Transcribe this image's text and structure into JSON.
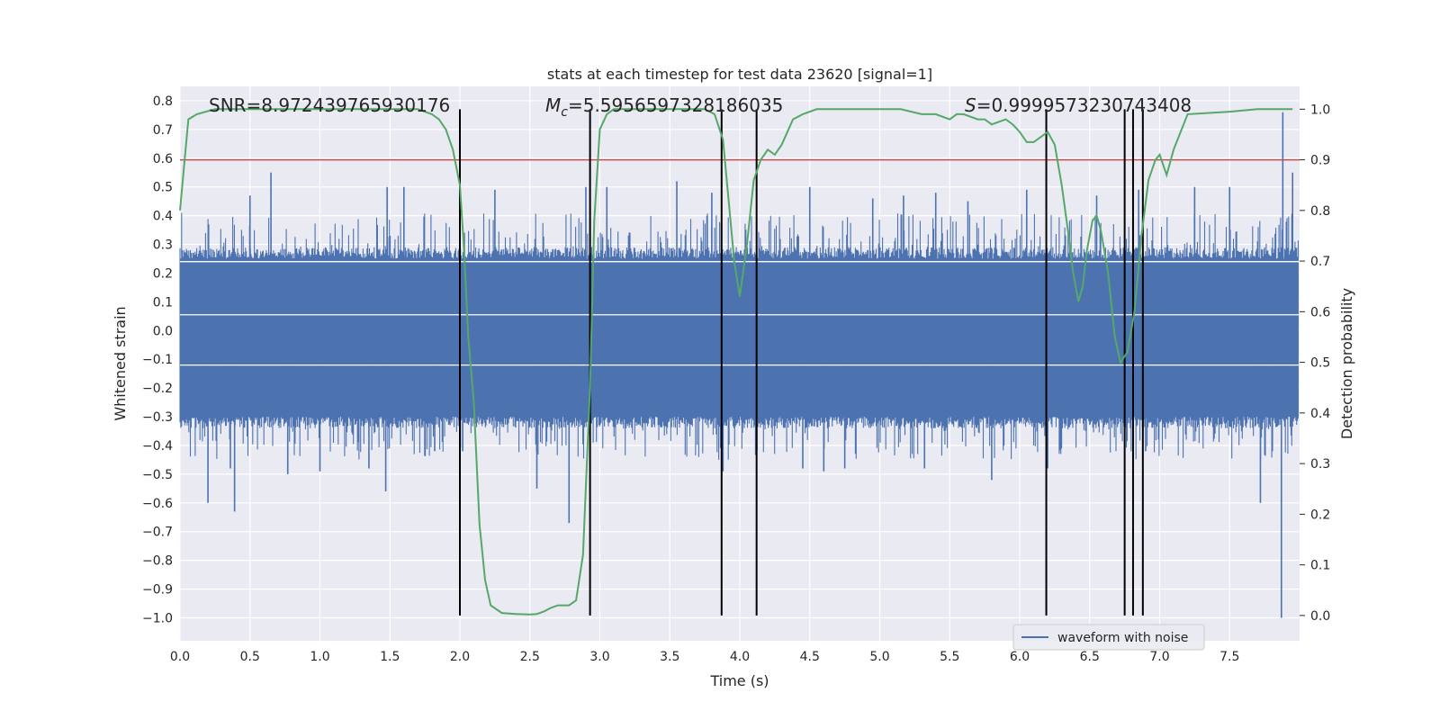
{
  "chart_data": {
    "type": "line",
    "title": "stats at each timestep for test data 23620 [signal=1]",
    "xlabel": "Time (s)",
    "ylabel_left": "Whitened strain",
    "ylabel_right": "Detection probability",
    "xlim": [
      0,
      8
    ],
    "ylim_left": [
      -1.08,
      0.85
    ],
    "ylim_right": [
      -0.05,
      1.045
    ],
    "x_ticks": [
      0.0,
      0.5,
      1.0,
      1.5,
      2.0,
      2.5,
      3.0,
      3.5,
      4.0,
      4.5,
      5.0,
      5.5,
      6.0,
      6.5,
      7.0,
      7.5
    ],
    "x_tick_labels": [
      "0.0",
      "0.5",
      "1.0",
      "1.5",
      "2.0",
      "2.5",
      "3.0",
      "3.5",
      "4.0",
      "4.5",
      "5.0",
      "5.5",
      "6.0",
      "6.5",
      "7.0",
      "7.5"
    ],
    "y_left_ticks": [
      0.8,
      0.7,
      0.6,
      0.5,
      0.4,
      0.3,
      0.2,
      0.1,
      0.0,
      -0.1,
      -0.2,
      -0.3,
      -0.4,
      -0.5,
      -0.6,
      -0.7,
      -0.8,
      -0.9,
      -1.0
    ],
    "y_left_tick_labels": [
      "0.8",
      "0.7",
      "0.6",
      "0.5",
      "0.4",
      "0.3",
      "0.2",
      "0.1",
      "0.0",
      "−0.1",
      "−0.2",
      "−0.3",
      "−0.4",
      "−0.5",
      "−0.6",
      "−0.7",
      "−0.8",
      "−0.9",
      "−1.0"
    ],
    "y_right_ticks": [
      1.0,
      0.9,
      0.8,
      0.7,
      0.6,
      0.5,
      0.4,
      0.3,
      0.2,
      0.1,
      0.0
    ],
    "y_right_tick_labels": [
      "1.0",
      "0.9",
      "0.8",
      "0.7",
      "0.6",
      "0.5",
      "0.4",
      "0.3",
      "0.2",
      "0.1",
      "0.0"
    ],
    "grid": true,
    "legend": {
      "placement": "lower-right",
      "entries": [
        "waveform with noise"
      ]
    },
    "annotations": {
      "snr": "SNR=8.972439765930176",
      "mc_symbol": "M",
      "mc_sub": "c",
      "mc_value": "=5.5956597328186035",
      "s_symbol": "S",
      "s_value": "=0.9999573230743408"
    },
    "waveform": {
      "name": "waveform with noise",
      "color": "#4c72b0",
      "t_start": 0.0,
      "t_end": 7.99,
      "envelope": [
        0.25,
        -0.3
      ],
      "spikes": [
        {
          "t": 0.2,
          "v": -0.6
        },
        {
          "t": 0.36,
          "v": -0.48
        },
        {
          "t": 0.39,
          "v": -0.63
        },
        {
          "t": 0.5,
          "v": 0.47
        },
        {
          "t": 0.65,
          "v": 0.55
        },
        {
          "t": 0.77,
          "v": -0.5
        },
        {
          "t": 1.0,
          "v": -0.49
        },
        {
          "t": 1.35,
          "v": -0.48
        },
        {
          "t": 1.47,
          "v": -0.56
        },
        {
          "t": 1.48,
          "v": 0.5
        },
        {
          "t": 1.6,
          "v": 0.5
        },
        {
          "t": 1.82,
          "v": -0.42
        },
        {
          "t": 2.02,
          "v": -0.42
        },
        {
          "t": 2.25,
          "v": 0.49
        },
        {
          "t": 2.55,
          "v": -0.55
        },
        {
          "t": 2.78,
          "v": -0.67
        },
        {
          "t": 2.9,
          "v": 0.5
        },
        {
          "t": 3.05,
          "v": 0.5
        },
        {
          "t": 3.55,
          "v": 0.52
        },
        {
          "t": 3.8,
          "v": 0.48
        },
        {
          "t": 3.88,
          "v": -0.49
        },
        {
          "t": 4.45,
          "v": -0.48
        },
        {
          "t": 4.5,
          "v": 0.5
        },
        {
          "t": 4.6,
          "v": -0.49
        },
        {
          "t": 4.75,
          "v": -0.48
        },
        {
          "t": 4.95,
          "v": 0.46
        },
        {
          "t": 5.17,
          "v": 0.47
        },
        {
          "t": 5.32,
          "v": -0.48
        },
        {
          "t": 5.4,
          "v": 0.48
        },
        {
          "t": 5.63,
          "v": 0.45
        },
        {
          "t": 5.8,
          "v": -0.52
        },
        {
          "t": 6.05,
          "v": 0.49
        },
        {
          "t": 6.2,
          "v": -0.48
        },
        {
          "t": 6.55,
          "v": 0.47
        },
        {
          "t": 6.85,
          "v": 0.49
        },
        {
          "t": 6.9,
          "v": -0.42
        },
        {
          "t": 7.25,
          "v": 0.5
        },
        {
          "t": 7.5,
          "v": 0.5
        },
        {
          "t": 7.72,
          "v": -0.6
        },
        {
          "t": 7.88,
          "v": 0.76
        },
        {
          "t": 7.87,
          "v": -1.0
        },
        {
          "t": 7.95,
          "v": 0.55
        }
      ]
    },
    "probability": {
      "color": "#55a868",
      "t": [
        0.0,
        0.06,
        0.12,
        0.25,
        0.5,
        1.0,
        1.5,
        1.7,
        1.8,
        1.85,
        1.9,
        1.95,
        2.0,
        2.03,
        2.06,
        2.1,
        2.14,
        2.18,
        2.22,
        2.3,
        2.4,
        2.5,
        2.55,
        2.6,
        2.65,
        2.7,
        2.78,
        2.83,
        2.88,
        2.93,
        2.96,
        3.0,
        3.05,
        3.1,
        3.2,
        3.4,
        3.6,
        3.75,
        3.82,
        3.88,
        3.92,
        3.96,
        4.0,
        4.05,
        4.1,
        4.15,
        4.2,
        4.25,
        4.3,
        4.38,
        4.45,
        4.55,
        4.7,
        5.0,
        5.15,
        5.3,
        5.4,
        5.5,
        5.55,
        5.6,
        5.7,
        5.75,
        5.8,
        5.85,
        5.9,
        5.95,
        6.0,
        6.05,
        6.1,
        6.15,
        6.2,
        6.25,
        6.3,
        6.35,
        6.38,
        6.42,
        6.45,
        6.48,
        6.52,
        6.55,
        6.58,
        6.63,
        6.68,
        6.72,
        6.77,
        6.82,
        6.87,
        6.92,
        6.97,
        7.0,
        7.05,
        7.1,
        7.2,
        7.5,
        7.7,
        7.95
      ],
      "p": [
        0.8,
        0.98,
        0.99,
        1.0,
        1.0,
        1.0,
        1.0,
        1.0,
        0.99,
        0.98,
        0.96,
        0.92,
        0.85,
        0.72,
        0.55,
        0.42,
        0.18,
        0.07,
        0.02,
        0.005,
        0.003,
        0.002,
        0.003,
        0.008,
        0.015,
        0.02,
        0.02,
        0.03,
        0.12,
        0.45,
        0.78,
        0.96,
        0.99,
        1.0,
        1.0,
        1.0,
        1.0,
        1.0,
        0.99,
        0.94,
        0.82,
        0.7,
        0.63,
        0.73,
        0.86,
        0.9,
        0.92,
        0.91,
        0.93,
        0.98,
        0.99,
        1.0,
        1.0,
        1.0,
        1.0,
        0.99,
        0.99,
        0.98,
        0.99,
        0.99,
        0.98,
        0.98,
        0.97,
        0.975,
        0.98,
        0.97,
        0.955,
        0.935,
        0.935,
        0.945,
        0.955,
        0.93,
        0.85,
        0.75,
        0.68,
        0.62,
        0.65,
        0.72,
        0.78,
        0.79,
        0.76,
        0.68,
        0.55,
        0.5,
        0.52,
        0.6,
        0.75,
        0.86,
        0.9,
        0.91,
        0.87,
        0.92,
        0.99,
        0.995,
        1.0,
        1.0
      ]
    },
    "threshold_line": {
      "value": 0.9,
      "color": "#c44e52"
    },
    "vertical_markers": [
      2.0,
      2.93,
      3.87,
      4.12,
      6.19,
      6.75,
      6.81,
      6.88
    ],
    "horizontal_white_lines": [
      0.24,
      0.055,
      -0.12
    ]
  }
}
